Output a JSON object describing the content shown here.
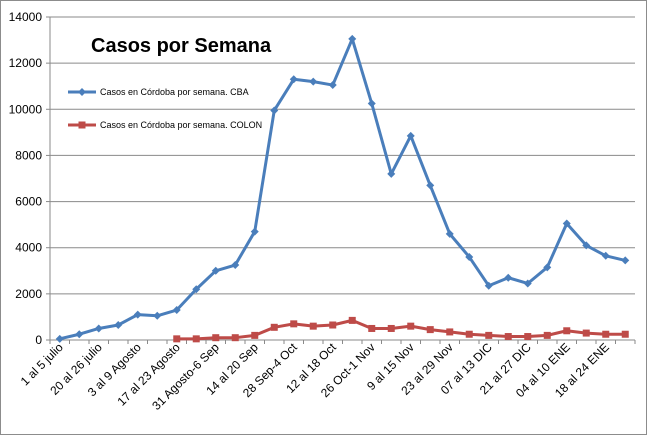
{
  "chart_data": {
    "type": "line",
    "title": "Casos por Semana",
    "xlabel": "",
    "ylabel": "",
    "ylim": [
      0,
      14000
    ],
    "yticks": [
      "0",
      "2000",
      "4000",
      "6000",
      "8000",
      "10000",
      "12000",
      "14000"
    ],
    "grid": "horizontal",
    "legend_position": "top-left",
    "categories": [
      "1 al 5 julio",
      "",
      "20 al 26 julio",
      "",
      "3 al 9 Agosto",
      "",
      "17 al 23 Agosto",
      "",
      "31 Agosto-6 Sep",
      "",
      "14 al 20 Sep",
      "",
      "28 Sep-4 Oct",
      "",
      "12 al 18 Oct",
      "",
      "26 Oct-1 Nov",
      "",
      "9 al 15 Nov",
      "",
      "23 al 29 Nov",
      "",
      "07 al 13 DIC",
      "",
      "21 al 27 DIC",
      "",
      "04 al 10 ENE",
      "",
      "18 al 24 ENE",
      ""
    ],
    "series": [
      {
        "name": "Casos en Córdoba por semana. CBA",
        "color": "#4a7ebb",
        "marker": "diamond",
        "values": [
          50,
          250,
          500,
          650,
          1100,
          1050,
          1300,
          2200,
          3000,
          3250,
          4700,
          9950,
          11300,
          11200,
          11050,
          13050,
          10250,
          7200,
          8850,
          6700,
          4600,
          3600,
          2350,
          2700,
          2450,
          3150,
          5050,
          4100,
          3650,
          3450
        ]
      },
      {
        "name": "Casos en Córdoba por semana. COLON",
        "color": "#be4b48",
        "marker": "square",
        "values": [
          null,
          null,
          null,
          null,
          null,
          null,
          50,
          50,
          100,
          100,
          200,
          550,
          700,
          600,
          650,
          850,
          500,
          500,
          600,
          450,
          350,
          250,
          200,
          150,
          150,
          200,
          400,
          300,
          250,
          250
        ]
      }
    ]
  }
}
